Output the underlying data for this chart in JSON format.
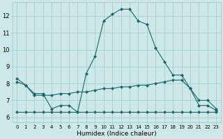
{
  "xlabel": "Humidex (Indice chaleur)",
  "xlim": [
    -0.5,
    23.5
  ],
  "ylim": [
    5.7,
    12.8
  ],
  "bg_color": "#cce8e8",
  "grid_color": "#a8cccc",
  "line_color": "#1a6666",
  "line1_x": [
    0,
    1,
    2,
    3,
    4,
    5,
    6,
    7,
    8,
    9,
    10,
    11,
    12,
    13,
    14,
    15,
    16,
    17,
    18,
    19,
    20,
    21,
    22,
    23
  ],
  "line1_y": [
    8.3,
    7.9,
    7.4,
    7.4,
    6.5,
    6.7,
    6.7,
    6.3,
    8.6,
    9.6,
    11.7,
    12.1,
    12.4,
    12.4,
    11.7,
    11.5,
    10.1,
    9.3,
    8.5,
    8.5,
    7.7,
    6.7,
    6.7,
    6.4
  ],
  "line2_x": [
    0,
    1,
    2,
    3,
    4,
    5,
    6,
    7,
    8,
    9,
    10,
    11,
    12,
    13,
    14,
    15,
    16,
    17,
    18,
    19,
    20,
    21,
    22,
    23
  ],
  "line2_y": [
    8.1,
    7.9,
    7.3,
    7.3,
    7.3,
    7.4,
    7.4,
    7.5,
    7.5,
    7.6,
    7.7,
    7.7,
    7.8,
    7.8,
    7.9,
    7.9,
    8.0,
    8.1,
    8.2,
    8.2,
    7.7,
    7.0,
    7.0,
    6.5
  ],
  "line3_x": [
    0,
    1,
    2,
    3,
    4,
    5,
    6,
    7,
    8,
    9,
    10,
    11,
    12,
    13,
    14,
    15,
    16,
    17,
    18,
    19,
    20,
    21,
    22,
    23
  ],
  "line3_y": [
    6.3,
    6.3,
    6.3,
    6.3,
    6.3,
    6.3,
    6.3,
    6.3,
    6.3,
    6.3,
    6.3,
    6.3,
    6.3,
    6.3,
    6.3,
    6.3,
    6.3,
    6.3,
    6.3,
    6.3,
    6.3,
    6.3,
    6.3,
    6.3
  ],
  "yticks": [
    6,
    7,
    8,
    9,
    10,
    11,
    12
  ],
  "xticks": [
    0,
    1,
    2,
    3,
    4,
    5,
    6,
    7,
    8,
    9,
    10,
    11,
    12,
    13,
    14,
    15,
    16,
    17,
    18,
    19,
    20,
    21,
    22,
    23
  ],
  "markersize": 2.5,
  "linewidth": 0.8
}
